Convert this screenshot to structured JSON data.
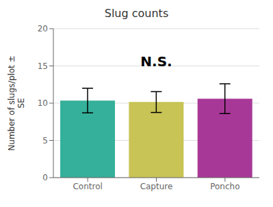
{
  "chart_data": {
    "type": "bar",
    "title": "Slug counts",
    "categories": [
      "Control",
      "Capture",
      "Poncho"
    ],
    "values": [
      10.35,
      10.15,
      10.6
    ],
    "errors": [
      1.65,
      1.4,
      2.0
    ],
    "colors": [
      "#35b09a",
      "#c8c455",
      "#a83898"
    ],
    "ylabel": "Number of slugs/plot ±\nSE",
    "ylim": [
      0,
      20
    ],
    "yticks": [
      0,
      5,
      10,
      15,
      20
    ],
    "grid": true,
    "annotations": [
      {
        "text": "N.S.",
        "x": "Capture",
        "y": 14.5
      }
    ]
  }
}
